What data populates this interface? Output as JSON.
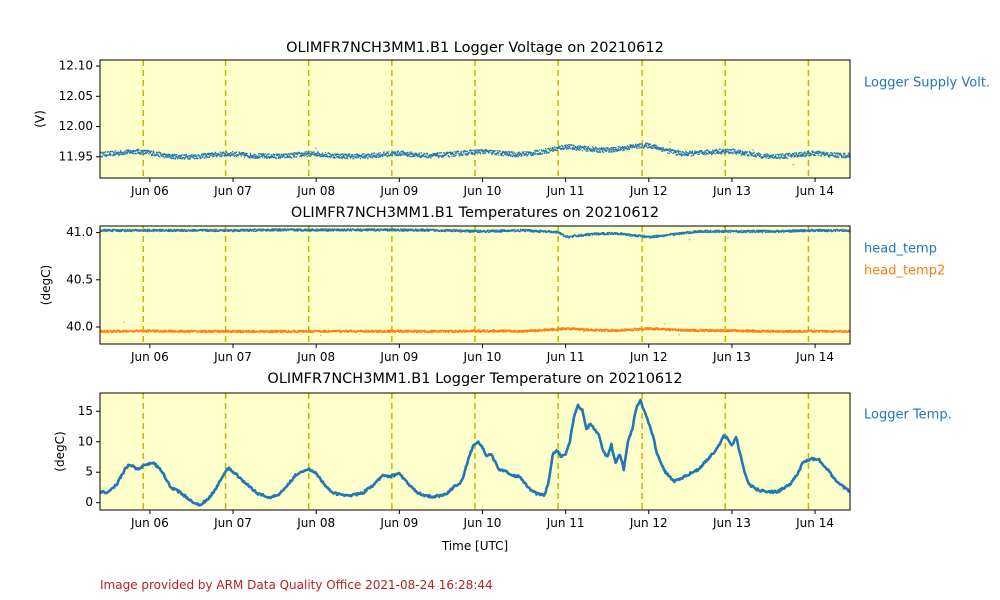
{
  "footer": "Image provided by ARM Data Quality Office 2021-08-24 16:28:44",
  "colors": {
    "panel_bg": "#ffffcc",
    "series_blue": "#1f77b4",
    "series_orange": "#ff7f0e",
    "day_line": "#c8b400",
    "footer": "#b22222"
  },
  "x_ticks": [
    "Jun 06",
    "Jun 07",
    "Jun 08",
    "Jun 09",
    "Jun 10",
    "Jun 11",
    "Jun 12",
    "Jun 13",
    "Jun 14"
  ],
  "x_range_days": [
    5.4,
    14.42
  ],
  "day_lines": [
    5.92,
    6.91,
    7.91,
    8.91,
    9.91,
    10.91,
    11.92,
    12.92,
    13.92
  ],
  "chart_data": [
    {
      "type": "scatter",
      "title": "OLIMFR7NCH3MM1.B1 Logger Voltage on 20210612",
      "ylabel": "(V)",
      "xlabel": "",
      "ylim": [
        11.915,
        12.11
      ],
      "yticks": [
        "11.95",
        "12.00",
        "12.05",
        "12.10"
      ],
      "series": [
        {
          "name": "Logger Supply Volt.",
          "color": "#1f77b4",
          "x": [
            5.4,
            5.6,
            5.8,
            6.0,
            6.2,
            6.4,
            6.6,
            6.8,
            7.0,
            7.2,
            7.4,
            7.6,
            7.8,
            8.0,
            8.2,
            8.4,
            8.6,
            8.8,
            9.0,
            9.2,
            9.4,
            9.6,
            9.8,
            10.0,
            10.2,
            10.4,
            10.6,
            10.8,
            11.0,
            11.2,
            11.4,
            11.6,
            11.8,
            12.0,
            12.2,
            12.4,
            12.6,
            12.8,
            13.0,
            13.2,
            13.4,
            13.6,
            13.8,
            14.0,
            14.2,
            14.42
          ],
          "y": [
            11.955,
            11.957,
            11.96,
            11.958,
            11.952,
            11.951,
            11.952,
            11.955,
            11.956,
            11.953,
            11.952,
            11.952,
            11.955,
            11.956,
            11.953,
            11.952,
            11.952,
            11.955,
            11.957,
            11.954,
            11.953,
            11.955,
            11.958,
            11.96,
            11.957,
            11.955,
            11.957,
            11.962,
            11.968,
            11.965,
            11.962,
            11.963,
            11.968,
            11.97,
            11.962,
            11.956,
            11.957,
            11.96,
            11.96,
            11.956,
            11.952,
            11.952,
            11.955,
            11.957,
            11.954,
            11.953
          ]
        }
      ]
    },
    {
      "type": "scatter",
      "title": "OLIMFR7NCH3MM1.B1 Temperatures on 20210612",
      "ylabel": "(degC)",
      "xlabel": "",
      "ylim": [
        39.82,
        41.07
      ],
      "yticks": [
        "40.0",
        "40.5",
        "41.0"
      ],
      "series": [
        {
          "name": "head_temp",
          "color": "#1f77b4",
          "x": [
            5.4,
            6.0,
            6.5,
            7.0,
            7.5,
            8.0,
            8.5,
            9.0,
            9.5,
            10.0,
            10.5,
            10.9,
            11.0,
            11.3,
            11.6,
            11.9,
            12.0,
            12.3,
            12.6,
            13.0,
            13.5,
            14.0,
            14.42
          ],
          "y": [
            41.03,
            41.03,
            41.03,
            41.03,
            41.035,
            41.035,
            41.035,
            41.035,
            41.03,
            41.02,
            41.03,
            41.01,
            40.96,
            40.99,
            41.0,
            40.97,
            40.96,
            40.99,
            41.02,
            41.02,
            41.02,
            41.03,
            41.03
          ]
        },
        {
          "name": "head_temp2",
          "color": "#ff7f0e",
          "x": [
            5.4,
            6.0,
            6.5,
            7.0,
            7.5,
            8.0,
            8.5,
            9.0,
            9.5,
            10.0,
            10.5,
            11.0,
            11.3,
            11.6,
            11.9,
            12.0,
            12.3,
            12.6,
            13.0,
            13.5,
            14.0,
            14.42
          ],
          "y": [
            39.96,
            39.965,
            39.96,
            39.96,
            39.96,
            39.962,
            39.962,
            39.962,
            39.96,
            39.965,
            39.962,
            39.99,
            39.975,
            39.97,
            39.985,
            39.99,
            39.975,
            39.97,
            39.968,
            39.96,
            39.962,
            39.96
          ]
        }
      ]
    },
    {
      "type": "line",
      "title": "OLIMFR7NCH3MM1.B1 Logger Temperature on 20210612",
      "ylabel": "(degC)",
      "xlabel": "Time [UTC]",
      "ylim": [
        -1.2,
        18
      ],
      "yticks": [
        "0",
        "5",
        "10",
        "15"
      ],
      "series": [
        {
          "name": "Logger Temp.",
          "color": "#1f77b4",
          "x": [
            5.4,
            5.5,
            5.6,
            5.7,
            5.75,
            5.85,
            5.95,
            6.05,
            6.15,
            6.25,
            6.35,
            6.45,
            6.55,
            6.6,
            6.7,
            6.8,
            6.9,
            6.95,
            7.05,
            7.15,
            7.3,
            7.45,
            7.55,
            7.65,
            7.75,
            7.85,
            7.9,
            8.0,
            8.1,
            8.2,
            8.3,
            8.4,
            8.55,
            8.7,
            8.8,
            8.9,
            9.0,
            9.1,
            9.2,
            9.3,
            9.4,
            9.55,
            9.65,
            9.75,
            9.85,
            9.9,
            9.95,
            10.0,
            10.05,
            10.1,
            10.2,
            10.3,
            10.35,
            10.45,
            10.55,
            10.65,
            10.75,
            10.8,
            10.85,
            10.9,
            10.95,
            11.0,
            11.05,
            11.1,
            11.15,
            11.2,
            11.25,
            11.3,
            11.4,
            11.45,
            11.5,
            11.55,
            11.6,
            11.65,
            11.7,
            11.75,
            11.8,
            11.85,
            11.9,
            11.92,
            11.95,
            12.0,
            12.05,
            12.1,
            12.2,
            12.3,
            12.4,
            12.5,
            12.6,
            12.7,
            12.8,
            12.85,
            12.9,
            12.95,
            13.0,
            13.05,
            13.1,
            13.15,
            13.2,
            13.3,
            13.4,
            13.55,
            13.7,
            13.8,
            13.85,
            13.95,
            14.05,
            14.15,
            14.25,
            14.35,
            14.42
          ],
          "y": [
            1.8,
            1.7,
            3.0,
            5.5,
            6.3,
            5.5,
            6.2,
            6.5,
            5.0,
            2.5,
            1.8,
            0.8,
            -0.3,
            -0.3,
            0.5,
            2.5,
            5.0,
            5.6,
            4.5,
            3.2,
            1.5,
            0.8,
            1.4,
            2.8,
            4.5,
            5.3,
            5.5,
            4.8,
            3.0,
            1.6,
            1.3,
            1.2,
            1.5,
            3.0,
            4.5,
            4.3,
            4.8,
            3.2,
            1.8,
            1.2,
            1.0,
            1.3,
            2.5,
            3.5,
            8.0,
            9.5,
            10.0,
            9.0,
            7.5,
            8.0,
            5.5,
            5.0,
            4.5,
            4.3,
            2.5,
            1.5,
            1.3,
            3.8,
            8.3,
            8.5,
            7.5,
            8.0,
            10.0,
            14.0,
            16.0,
            15.2,
            12.0,
            13.0,
            11.0,
            8.5,
            7.5,
            9.5,
            6.5,
            8.0,
            5.5,
            10.0,
            12.0,
            15.5,
            17.0,
            16.0,
            15.0,
            13.0,
            11.0,
            8.0,
            5.0,
            3.5,
            4.0,
            4.8,
            5.5,
            7.0,
            8.5,
            9.5,
            11.0,
            10.5,
            9.3,
            10.8,
            8.0,
            5.0,
            3.0,
            2.2,
            1.8,
            1.8,
            3.0,
            5.0,
            6.5,
            7.2,
            7.0,
            5.5,
            3.5,
            2.5,
            1.8
          ]
        }
      ]
    }
  ]
}
